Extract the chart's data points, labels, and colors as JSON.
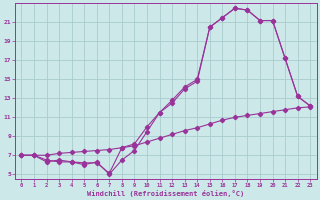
{
  "xlabel": "Windchill (Refroidissement éolien,°C)",
  "bg_color": "#cce8e8",
  "grid_color": "#aacccc",
  "line_color": "#993399",
  "line1_x": [
    0,
    1,
    2,
    3,
    4,
    5,
    6,
    7,
    8,
    9,
    10,
    11,
    12,
    13,
    14,
    15,
    16,
    17,
    18,
    19,
    20,
    21,
    22,
    23
  ],
  "line1_y": [
    7.0,
    7.0,
    6.5,
    6.3,
    6.3,
    6.2,
    6.2,
    5.1,
    7.8,
    8.2,
    10.0,
    11.5,
    12.8,
    14.2,
    15.0,
    20.5,
    21.5,
    22.5,
    22.3,
    21.2,
    21.2,
    17.2,
    13.2,
    12.2
  ],
  "line2_x": [
    0,
    1,
    2,
    3,
    4,
    5,
    6,
    7,
    8,
    9,
    10,
    11,
    12,
    13,
    14,
    15,
    16,
    17,
    18,
    19,
    20,
    21,
    22,
    23
  ],
  "line2_y": [
    7.0,
    7.0,
    6.3,
    6.5,
    6.3,
    6.0,
    6.3,
    5.0,
    6.5,
    7.5,
    9.5,
    11.5,
    12.5,
    14.0,
    14.8,
    20.5,
    21.5,
    22.5,
    22.3,
    21.2,
    21.2,
    17.2,
    13.2,
    12.2
  ],
  "line3_x": [
    0,
    1,
    2,
    3,
    4,
    5,
    6,
    7,
    8,
    9,
    10,
    11,
    12,
    13,
    14,
    15,
    16,
    17,
    18,
    19,
    20,
    21,
    22,
    23
  ],
  "line3_y": [
    7.0,
    7.0,
    7.0,
    7.2,
    7.3,
    7.4,
    7.5,
    7.6,
    7.8,
    8.0,
    8.4,
    8.8,
    9.2,
    9.6,
    9.9,
    10.3,
    10.7,
    11.0,
    11.2,
    11.4,
    11.6,
    11.8,
    12.0,
    12.1
  ],
  "xlim": [
    -0.5,
    23.5
  ],
  "ylim": [
    4.5,
    23
  ],
  "yticks": [
    5,
    7,
    9,
    11,
    13,
    15,
    17,
    19,
    21
  ],
  "xticks": [
    0,
    1,
    2,
    3,
    4,
    5,
    6,
    7,
    8,
    9,
    10,
    11,
    12,
    13,
    14,
    15,
    16,
    17,
    18,
    19,
    20,
    21,
    22,
    23
  ]
}
